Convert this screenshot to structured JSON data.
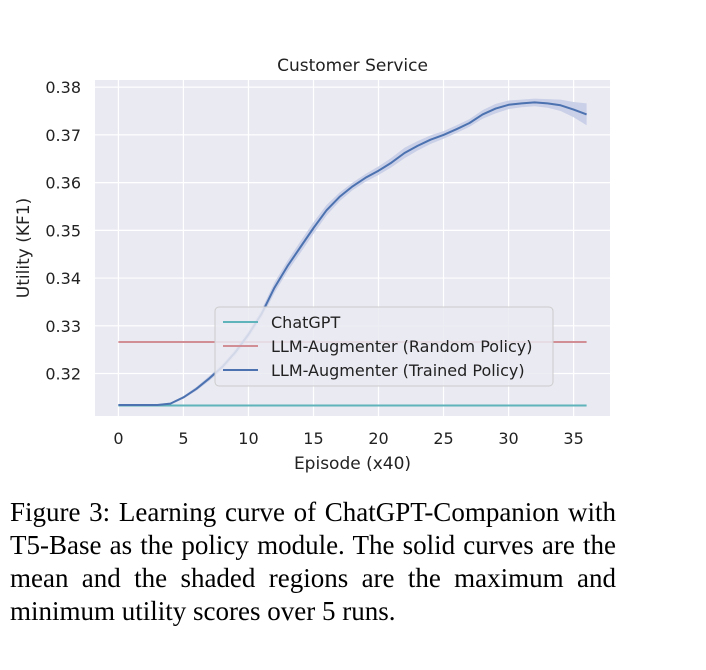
{
  "chart_data": {
    "type": "line",
    "title": "Customer Service",
    "xlabel": "Episode (x40)",
    "ylabel": "Utility (KF1)",
    "xlim": [
      -1.8,
      37.8
    ],
    "ylim": [
      0.3111,
      0.3815
    ],
    "xticks": [
      0,
      5,
      10,
      15,
      20,
      25,
      30,
      35
    ],
    "yticks": [
      0.32,
      0.33,
      0.34,
      0.35,
      0.36,
      0.37,
      0.38
    ],
    "ytick_labels": [
      "0.32",
      "0.33",
      "0.34",
      "0.35",
      "0.36",
      "0.37",
      "0.38"
    ],
    "grid": true,
    "legend_position": "center-right",
    "series": [
      {
        "name": "ChatGPT",
        "color": "#5fb3bb",
        "x": [
          0,
          36
        ],
        "y": [
          0.3133,
          0.3133
        ]
      },
      {
        "name": "LLM-Augmenter (Random Policy)",
        "color": "#d18f95",
        "x": [
          0,
          36
        ],
        "y": [
          0.3266,
          0.3266
        ]
      },
      {
        "name": "LLM-Augmenter (Trained Policy)",
        "color": "#4c72b0",
        "band_color": "#c6cde5",
        "x": [
          0,
          1,
          2,
          3,
          4,
          5,
          6,
          7,
          8,
          9,
          10,
          11,
          12,
          13,
          14,
          15,
          16,
          17,
          18,
          19,
          20,
          21,
          22,
          23,
          24,
          25,
          26,
          27,
          28,
          29,
          30,
          31,
          32,
          33,
          34,
          35,
          36
        ],
        "y": [
          0.3134,
          0.3134,
          0.3134,
          0.3134,
          0.3137,
          0.315,
          0.3168,
          0.319,
          0.3214,
          0.3245,
          0.3282,
          0.3325,
          0.338,
          0.3425,
          0.3465,
          0.3505,
          0.3542,
          0.357,
          0.3592,
          0.361,
          0.3625,
          0.3642,
          0.3662,
          0.3677,
          0.369,
          0.37,
          0.3712,
          0.3725,
          0.3743,
          0.3755,
          0.3763,
          0.3766,
          0.3768,
          0.3766,
          0.3762,
          0.3753,
          0.3743
        ],
        "y_min": [
          0.3132,
          0.3132,
          0.3132,
          0.3132,
          0.3135,
          0.3147,
          0.3164,
          0.3185,
          0.3208,
          0.3238,
          0.3274,
          0.3316,
          0.3369,
          0.3414,
          0.3453,
          0.3493,
          0.3531,
          0.3561,
          0.3584,
          0.3602,
          0.3616,
          0.3632,
          0.3651,
          0.3667,
          0.3681,
          0.3692,
          0.3704,
          0.3717,
          0.3734,
          0.3745,
          0.3754,
          0.3758,
          0.376,
          0.3757,
          0.375,
          0.3737,
          0.372
        ],
        "y_max": [
          0.3136,
          0.3136,
          0.3136,
          0.3136,
          0.3139,
          0.3153,
          0.3172,
          0.3195,
          0.322,
          0.3252,
          0.329,
          0.3334,
          0.3391,
          0.3436,
          0.3477,
          0.3517,
          0.3553,
          0.3579,
          0.36,
          0.3618,
          0.3634,
          0.3652,
          0.3673,
          0.3687,
          0.3699,
          0.3708,
          0.372,
          0.3733,
          0.3752,
          0.3765,
          0.3772,
          0.3774,
          0.3776,
          0.3775,
          0.3774,
          0.3769,
          0.3766
        ]
      }
    ]
  },
  "caption": "Figure 3: Learning curve of ChatGPT-Companion with T5-Base as the policy module. The solid curves are the mean and the shaded regions are the maximum and minimum utility scores over 5 runs."
}
